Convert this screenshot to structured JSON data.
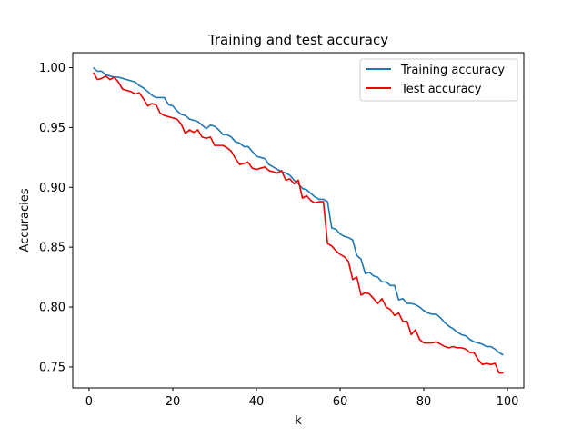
{
  "chart_data": {
    "type": "line",
    "title": "Training and test accuracy",
    "xlabel": "k",
    "ylabel": "Accuracies",
    "xlim": [
      -3.9,
      103.9
    ],
    "ylim": [
      0.7325,
      1.0125
    ],
    "xticks": [
      0,
      20,
      40,
      60,
      80,
      100
    ],
    "yticks": [
      0.75,
      0.8,
      0.85,
      0.9,
      0.95,
      1.0
    ],
    "ytick_labels": [
      "0.75",
      "0.80",
      "0.85",
      "0.90",
      "0.95",
      "1.00"
    ],
    "grid": false,
    "legend_position": "top-right",
    "series": [
      {
        "name": "Training accuracy",
        "color": "#1f77b4",
        "x": [
          1,
          2,
          3,
          4,
          5,
          6,
          7,
          8,
          9,
          10,
          11,
          12,
          13,
          14,
          15,
          16,
          17,
          18,
          19,
          20,
          21,
          22,
          23,
          24,
          25,
          26,
          27,
          28,
          29,
          30,
          31,
          32,
          33,
          34,
          35,
          36,
          37,
          38,
          39,
          40,
          41,
          42,
          43,
          44,
          45,
          46,
          47,
          48,
          49,
          50,
          51,
          52,
          53,
          54,
          55,
          56,
          57,
          58,
          59,
          60,
          61,
          62,
          63,
          64,
          65,
          66,
          67,
          68,
          69,
          70,
          71,
          72,
          73,
          74,
          75,
          76,
          77,
          78,
          79,
          80,
          81,
          82,
          83,
          84,
          85,
          86,
          87,
          88,
          89,
          90,
          91,
          92,
          93,
          94,
          95,
          96,
          97,
          98,
          99
        ],
        "y": [
          1.0,
          0.997,
          0.997,
          0.994,
          0.993,
          0.992,
          0.992,
          0.991,
          0.99,
          0.989,
          0.988,
          0.985,
          0.983,
          0.98,
          0.977,
          0.975,
          0.975,
          0.975,
          0.969,
          0.968,
          0.964,
          0.961,
          0.96,
          0.957,
          0.956,
          0.955,
          0.952,
          0.949,
          0.952,
          0.951,
          0.948,
          0.944,
          0.944,
          0.942,
          0.938,
          0.937,
          0.934,
          0.934,
          0.93,
          0.926,
          0.925,
          0.924,
          0.919,
          0.917,
          0.915,
          0.913,
          0.912,
          0.91,
          0.906,
          0.903,
          0.899,
          0.898,
          0.895,
          0.892,
          0.89,
          0.89,
          0.888,
          0.866,
          0.865,
          0.861,
          0.859,
          0.858,
          0.856,
          0.843,
          0.84,
          0.828,
          0.829,
          0.826,
          0.825,
          0.821,
          0.821,
          0.818,
          0.818,
          0.806,
          0.807,
          0.803,
          0.803,
          0.802,
          0.8,
          0.797,
          0.795,
          0.794,
          0.794,
          0.791,
          0.787,
          0.784,
          0.782,
          0.779,
          0.777,
          0.776,
          0.773,
          0.771,
          0.77,
          0.769,
          0.767,
          0.767,
          0.765,
          0.762,
          0.76
        ]
      },
      {
        "name": "Test accuracy",
        "color": "#ee0000",
        "x": [
          1,
          2,
          3,
          4,
          5,
          6,
          7,
          8,
          9,
          10,
          11,
          12,
          13,
          14,
          15,
          16,
          17,
          18,
          19,
          20,
          21,
          22,
          23,
          24,
          25,
          26,
          27,
          28,
          29,
          30,
          31,
          32,
          33,
          34,
          35,
          36,
          37,
          38,
          39,
          40,
          41,
          42,
          43,
          44,
          45,
          46,
          47,
          48,
          49,
          50,
          51,
          52,
          53,
          54,
          55,
          56,
          57,
          58,
          59,
          60,
          61,
          62,
          63,
          64,
          65,
          66,
          67,
          68,
          69,
          70,
          71,
          72,
          73,
          74,
          75,
          76,
          77,
          78,
          79,
          80,
          81,
          82,
          83,
          84,
          85,
          86,
          87,
          88,
          89,
          90,
          91,
          92,
          93,
          94,
          95,
          96,
          97,
          98,
          99
        ],
        "y": [
          0.996,
          0.99,
          0.991,
          0.993,
          0.99,
          0.992,
          0.988,
          0.982,
          0.981,
          0.98,
          0.978,
          0.979,
          0.974,
          0.968,
          0.97,
          0.969,
          0.962,
          0.96,
          0.959,
          0.958,
          0.957,
          0.953,
          0.945,
          0.948,
          0.946,
          0.948,
          0.942,
          0.941,
          0.942,
          0.935,
          0.935,
          0.935,
          0.933,
          0.93,
          0.924,
          0.919,
          0.92,
          0.921,
          0.916,
          0.915,
          0.916,
          0.917,
          0.914,
          0.913,
          0.912,
          0.914,
          0.906,
          0.907,
          0.903,
          0.906,
          0.891,
          0.893,
          0.889,
          0.887,
          0.888,
          0.888,
          0.853,
          0.851,
          0.847,
          0.844,
          0.842,
          0.838,
          0.823,
          0.825,
          0.81,
          0.812,
          0.811,
          0.807,
          0.803,
          0.807,
          0.8,
          0.798,
          0.793,
          0.795,
          0.788,
          0.788,
          0.777,
          0.781,
          0.773,
          0.77,
          0.77,
          0.77,
          0.771,
          0.769,
          0.767,
          0.766,
          0.767,
          0.766,
          0.766,
          0.765,
          0.762,
          0.762,
          0.756,
          0.752,
          0.753,
          0.752,
          0.753,
          0.745,
          0.745
        ]
      }
    ]
  }
}
